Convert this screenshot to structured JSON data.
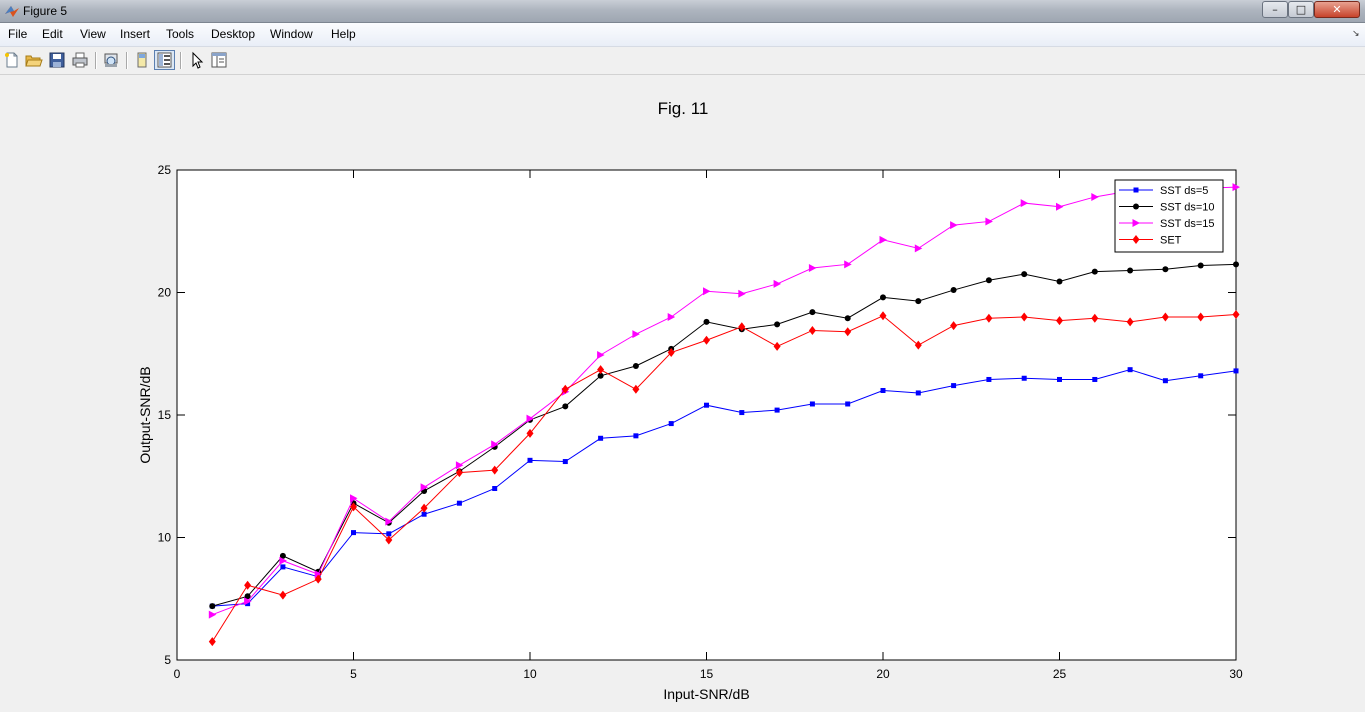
{
  "window": {
    "title": "Figure 5",
    "min_glyph": "–",
    "max_glyph": "□",
    "close_glyph": "✕"
  },
  "menu": {
    "items": [
      "File",
      "Edit",
      "View",
      "Insert",
      "Tools",
      "Desktop",
      "Window",
      "Help"
    ],
    "dock_glyph": "↘"
  },
  "toolbar": {
    "icons": [
      "new-figure-icon",
      "open-file-icon",
      "save-icon",
      "print-icon",
      "print-preview-icon",
      "hide-plot-tools-icon",
      "show-plot-tools-icon",
      "edit-plot-arrow-icon",
      "plot-browser-icon"
    ]
  },
  "colors": {
    "blue": "#0000ff",
    "black": "#000000",
    "magenta": "#ff00ff",
    "red": "#ff0000"
  },
  "chart_data": {
    "type": "line",
    "title": "Fig. 11",
    "xlabel": "Input-SNR/dB",
    "ylabel": "Output-SNR/dB",
    "xlim": [
      0,
      30
    ],
    "ylim": [
      5,
      25
    ],
    "xticks": [
      0,
      5,
      10,
      15,
      20,
      25,
      30
    ],
    "yticks": [
      5,
      10,
      15,
      20,
      25
    ],
    "grid": false,
    "legend_position": "top-right",
    "x": [
      1,
      2,
      3,
      4,
      5,
      6,
      7,
      8,
      9,
      10,
      11,
      12,
      13,
      14,
      15,
      16,
      17,
      18,
      19,
      20,
      21,
      22,
      23,
      24,
      25,
      26,
      27,
      28,
      29,
      30
    ],
    "series": [
      {
        "name": "SST ds=5",
        "color": "#0000ff",
        "marker": "square",
        "values": [
          7.2,
          7.3,
          8.8,
          8.4,
          10.2,
          10.15,
          10.95,
          11.4,
          12.0,
          13.15,
          13.1,
          14.05,
          14.15,
          14.65,
          15.4,
          15.1,
          15.2,
          15.45,
          15.45,
          16.0,
          15.9,
          16.2,
          16.45,
          16.5,
          16.45,
          16.45,
          16.85,
          16.4,
          16.6,
          16.8
        ]
      },
      {
        "name": "SST ds=10",
        "color": "#000000",
        "marker": "circle",
        "values": [
          7.2,
          7.6,
          9.25,
          8.6,
          11.4,
          10.6,
          11.9,
          12.7,
          13.7,
          14.8,
          15.35,
          16.6,
          17.0,
          17.7,
          18.8,
          18.5,
          18.7,
          19.2,
          18.95,
          19.8,
          19.65,
          20.1,
          20.5,
          20.75,
          20.45,
          20.85,
          20.9,
          20.95,
          21.1,
          21.15
        ]
      },
      {
        "name": "SST ds=15",
        "color": "#ff00ff",
        "marker": "triangle-right",
        "values": [
          6.85,
          7.4,
          9.05,
          8.5,
          11.6,
          10.65,
          12.05,
          12.95,
          13.8,
          14.85,
          15.95,
          17.45,
          18.3,
          19.0,
          20.05,
          19.95,
          20.35,
          21.0,
          21.15,
          22.15,
          21.8,
          22.75,
          22.9,
          23.65,
          23.5,
          23.9,
          24.15,
          24.3,
          24.25,
          24.3
        ]
      },
      {
        "name": "SET",
        "color": "#ff0000",
        "marker": "diamond",
        "values": [
          5.75,
          8.05,
          7.65,
          8.3,
          11.25,
          9.9,
          11.2,
          12.65,
          12.75,
          14.25,
          16.05,
          16.85,
          16.05,
          17.55,
          18.05,
          18.6,
          17.8,
          18.45,
          18.4,
          19.05,
          17.85,
          18.65,
          18.95,
          19.0,
          18.85,
          18.95,
          18.8,
          19.0,
          19.0,
          19.1
        ]
      }
    ]
  }
}
